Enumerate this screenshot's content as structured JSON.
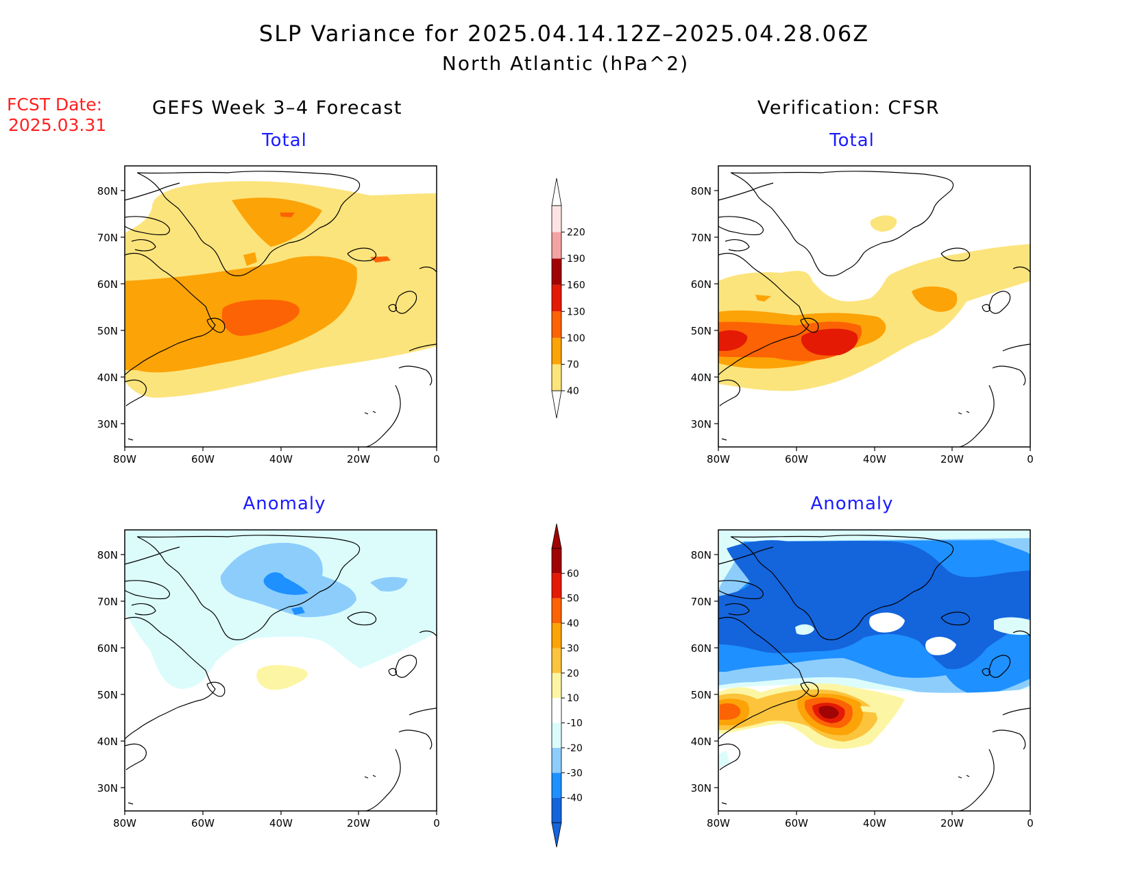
{
  "title": {
    "line1": "SLP Variance for 2025.04.14.12Z–2025.04.28.06Z",
    "line2": "North Atlantic (hPa^2)"
  },
  "forecast_date": {
    "label": "FCST Date:",
    "value": "2025.03.31"
  },
  "columns": {
    "left": "GEFS Week 3–4 Forecast",
    "right": "Verification: CFSR"
  },
  "panels": {
    "total_label": "Total",
    "anomaly_label": "Anomaly"
  },
  "axes": {
    "lat_ticks": [
      "80N",
      "70N",
      "60N",
      "50N",
      "40N",
      "30N"
    ],
    "lon_ticks": [
      "80W",
      "60W",
      "40W",
      "20W",
      "0"
    ]
  },
  "colorbars": {
    "total": {
      "levels": [
        "40",
        "70",
        "100",
        "130",
        "160",
        "190",
        "220"
      ],
      "colors": [
        "#fce47c",
        "#fca307",
        "#fc6304",
        "#e41a04",
        "#a00404",
        "#f4a3a3",
        "#fce4e4"
      ]
    },
    "anomaly": {
      "levels": [
        "-40",
        "-30",
        "-20",
        "-10",
        "10",
        "20",
        "30",
        "40",
        "50",
        "60"
      ],
      "colors": [
        "#1464dc",
        "#1e90ff",
        "#8ccdfc",
        "#dcfcfc",
        "#ffffff",
        "#fcf6a4",
        "#fcc43c",
        "#fca307",
        "#fc6304",
        "#e41a04",
        "#a00404"
      ]
    }
  }
}
